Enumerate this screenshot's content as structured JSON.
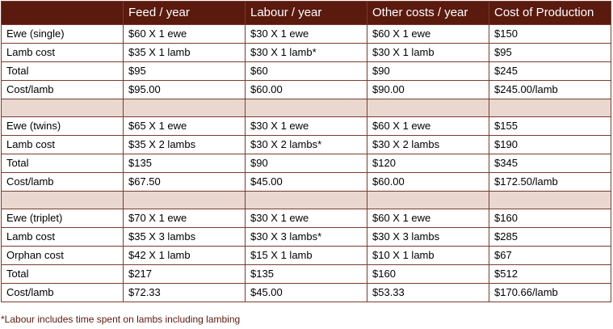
{
  "table": {
    "headers": [
      "",
      "Feed / year",
      "Labour / year",
      "Other costs / year",
      "Cost of Production"
    ],
    "groups": [
      {
        "rows": [
          [
            "Ewe (single)",
            "$60 X 1 ewe",
            "$30 X 1 ewe",
            "$60 X 1 ewe",
            "$150"
          ],
          [
            "Lamb cost",
            "$35 X 1 lamb",
            "$30 X 1 lamb*",
            "$30 X 1 lamb",
            "$95"
          ],
          [
            "Total",
            "$95",
            "$60",
            "$90",
            "$245"
          ],
          [
            "Cost/lamb",
            "$95.00",
            "$60.00",
            "$90.00",
            "$245.00/lamb"
          ]
        ]
      },
      {
        "rows": [
          [
            "Ewe (twins)",
            "$65 X 1 ewe",
            "$30 X 1 ewe",
            "$60 X 1 ewe",
            "$155"
          ],
          [
            "Lamb cost",
            "$35 X 2 lambs",
            "$30 X 2 lambs*",
            "$30 X 2 lambs",
            "$190"
          ],
          [
            "Total",
            "$135",
            "$90",
            "$120",
            "$345"
          ],
          [
            "Cost/lamb",
            "$67.50",
            "$45.00",
            "$60.00",
            "$172.50/lamb"
          ]
        ]
      },
      {
        "rows": [
          [
            "Ewe (triplet)",
            "$70 X 1 ewe",
            "$30 X 1 ewe",
            "$60 X 1 ewe",
            "$160"
          ],
          [
            "Lamb cost",
            "$35 X 3 lambs",
            "$30 X 3 lambs*",
            "$30 X 3 lambs",
            "$285"
          ],
          [
            "Orphan cost",
            "$42 X 1 lamb",
            "$15 X 1 lamb",
            "$10 X 1 lamb",
            "$67"
          ],
          [
            "Total",
            "$217",
            "$135",
            "$160",
            "$512"
          ],
          [
            "Cost/lamb",
            "$72.33",
            "$45.00",
            "$53.33",
            "$170.66/lamb"
          ]
        ]
      }
    ]
  },
  "footnote": "*Labour includes time spent on lambs including lambing",
  "colors": {
    "header_bg": "#5a1a0e",
    "spacer_bg": "#ead8d0",
    "border": "#7a3b2e",
    "footnote": "#5a1a0e"
  }
}
